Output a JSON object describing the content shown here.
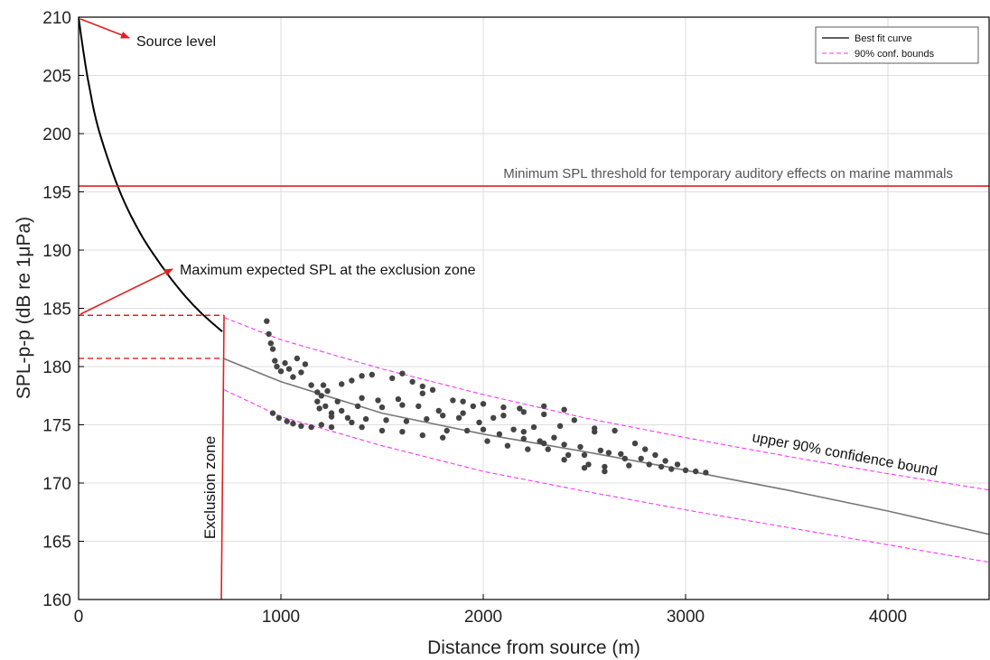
{
  "chart_data": {
    "type": "scatter",
    "xlabel": "Distance from source (m)",
    "ylabel": "SPL-p-p (dB re 1μPa)",
    "xlim": [
      0,
      4500
    ],
    "ylim": [
      160,
      210
    ],
    "xticks": [
      0,
      1000,
      2000,
      3000,
      4000
    ],
    "yticks": [
      160,
      165,
      170,
      175,
      180,
      185,
      190,
      195,
      200,
      205,
      210
    ],
    "grid": true,
    "legend": {
      "placement": "top-right",
      "entries": [
        {
          "label": "Best fit curve",
          "color": "#000000",
          "style": "solid"
        },
        {
          "label": "90% conf. bounds",
          "color": "#ff33ff",
          "style": "dashed"
        }
      ]
    },
    "threshold": {
      "y": 195.5,
      "label": "Minimum SPL threshold for temporary auditory effects on marine mammals",
      "color": "#e02020"
    },
    "exclusion_zone": {
      "x": 710,
      "label": "Exclusion zone",
      "color": "#e02020",
      "upper_level": 184.4,
      "lower_level": 180.7
    },
    "annotations": {
      "source_level": "Source level",
      "max_expected": "Maximum expected SPL at the exclusion zone",
      "upper_bound_label": "upper 90% confidence bound"
    },
    "best_fit": {
      "source_level": 210,
      "k": 0.0191,
      "points": [
        [
          0,
          210
        ],
        [
          20,
          207.5
        ],
        [
          50,
          204.3
        ],
        [
          100,
          200.3
        ],
        [
          200,
          195.2
        ],
        [
          300,
          191.6
        ],
        [
          400,
          188.9
        ],
        [
          500,
          186.6
        ],
        [
          600,
          184.7
        ],
        [
          710,
          183.0
        ],
        [
          715,
          180.7
        ],
        [
          1000,
          178.7
        ],
        [
          1500,
          176.0
        ],
        [
          2000,
          174.2
        ],
        [
          2500,
          172.7
        ],
        [
          3000,
          171.1
        ],
        [
          3200,
          170.4
        ],
        [
          3500,
          169.4
        ],
        [
          4000,
          167.6
        ],
        [
          4500,
          165.6
        ]
      ]
    },
    "upper_bound": [
      [
        720,
        184.2
      ],
      [
        1000,
        182.3
      ],
      [
        1500,
        179.8
      ],
      [
        2000,
        177.6
      ],
      [
        2500,
        175.6
      ],
      [
        3000,
        173.9
      ],
      [
        3500,
        172.3
      ],
      [
        4000,
        170.8
      ],
      [
        4500,
        169.4
      ]
    ],
    "lower_bound": [
      [
        720,
        178.0
      ],
      [
        1000,
        175.7
      ],
      [
        1500,
        173.2
      ],
      [
        2000,
        171.0
      ],
      [
        2500,
        169.3
      ],
      [
        3000,
        167.7
      ],
      [
        3500,
        166.2
      ],
      [
        4000,
        164.7
      ],
      [
        4500,
        163.2
      ]
    ],
    "series": [
      {
        "color": "#444444",
        "points": [
          [
            930,
            183.9
          ],
          [
            940,
            182.8
          ],
          [
            950,
            182.0
          ],
          [
            960,
            181.5
          ],
          [
            970,
            180.5
          ],
          [
            980,
            180.0
          ],
          [
            1000,
            179.6
          ],
          [
            1020,
            180.3
          ],
          [
            1040,
            179.8
          ],
          [
            1060,
            179.1
          ],
          [
            1080,
            180.7
          ],
          [
            1100,
            179.5
          ],
          [
            1120,
            180.2
          ],
          [
            1150,
            178.4
          ],
          [
            1180,
            177.8
          ],
          [
            1200,
            177.5
          ],
          [
            1220,
            176.6
          ],
          [
            1250,
            176.0
          ],
          [
            1280,
            177.0
          ],
          [
            1300,
            176.2
          ],
          [
            1330,
            175.6
          ],
          [
            1350,
            178.8
          ],
          [
            1380,
            176.6
          ],
          [
            1400,
            177.3
          ],
          [
            1420,
            175.5
          ],
          [
            1450,
            179.3
          ],
          [
            1480,
            177.1
          ],
          [
            1500,
            176.5
          ],
          [
            1520,
            175.4
          ],
          [
            1550,
            179.0
          ],
          [
            1580,
            177.2
          ],
          [
            1600,
            176.7
          ],
          [
            1620,
            175.3
          ],
          [
            1650,
            178.7
          ],
          [
            1680,
            176.6
          ],
          [
            1700,
            177.7
          ],
          [
            1720,
            175.5
          ],
          [
            1750,
            178.0
          ],
          [
            1780,
            176.2
          ],
          [
            1800,
            175.8
          ],
          [
            1820,
            174.5
          ],
          [
            1850,
            177.1
          ],
          [
            1880,
            175.6
          ],
          [
            1900,
            176.0
          ],
          [
            1920,
            174.5
          ],
          [
            1950,
            176.6
          ],
          [
            1980,
            175.2
          ],
          [
            2000,
            174.6
          ],
          [
            2020,
            173.6
          ],
          [
            2050,
            175.6
          ],
          [
            2080,
            174.2
          ],
          [
            2100,
            175.8
          ],
          [
            2120,
            173.2
          ],
          [
            2150,
            174.6
          ],
          [
            2180,
            176.4
          ],
          [
            2200,
            174.4
          ],
          [
            2220,
            172.9
          ],
          [
            2250,
            174.8
          ],
          [
            2280,
            173.6
          ],
          [
            2300,
            176.6
          ],
          [
            2320,
            172.9
          ],
          [
            2350,
            173.9
          ],
          [
            2380,
            174.9
          ],
          [
            2400,
            173.3
          ],
          [
            2420,
            172.4
          ],
          [
            2450,
            175.4
          ],
          [
            2480,
            173.1
          ],
          [
            2500,
            172.4
          ],
          [
            2520,
            171.6
          ],
          [
            2550,
            174.4
          ],
          [
            2580,
            172.8
          ],
          [
            2600,
            171.4
          ],
          [
            2620,
            172.6
          ],
          [
            2650,
            174.5
          ],
          [
            2680,
            172.5
          ],
          [
            2700,
            172.1
          ],
          [
            2720,
            171.5
          ],
          [
            2750,
            173.4
          ],
          [
            2780,
            172.1
          ],
          [
            2800,
            172.9
          ],
          [
            2820,
            171.6
          ],
          [
            2850,
            172.4
          ],
          [
            2880,
            171.4
          ],
          [
            2900,
            171.9
          ],
          [
            2930,
            171.2
          ],
          [
            2960,
            171.6
          ],
          [
            3000,
            171.1
          ],
          [
            3050,
            171.0
          ],
          [
            3100,
            170.9
          ],
          [
            960,
            176.0
          ],
          [
            990,
            175.6
          ],
          [
            1030,
            175.3
          ],
          [
            1060,
            175.1
          ],
          [
            1100,
            174.9
          ],
          [
            1150,
            174.8
          ],
          [
            1200,
            175.0
          ],
          [
            1250,
            174.8
          ],
          [
            1300,
            178.5
          ],
          [
            1400,
            179.2
          ],
          [
            1600,
            179.4
          ],
          [
            1700,
            178.3
          ],
          [
            1900,
            177.0
          ],
          [
            2000,
            176.8
          ],
          [
            2100,
            176.5
          ],
          [
            2200,
            176.1
          ],
          [
            2300,
            175.9
          ],
          [
            2400,
            176.3
          ],
          [
            2550,
            174.7
          ],
          [
            2600,
            171.0
          ],
          [
            2500,
            171.3
          ],
          [
            2400,
            172.0
          ],
          [
            2300,
            173.4
          ],
          [
            2200,
            173.8
          ],
          [
            1800,
            173.9
          ],
          [
            1700,
            174.1
          ],
          [
            1600,
            174.4
          ],
          [
            1500,
            174.5
          ],
          [
            1400,
            174.8
          ],
          [
            1350,
            175.2
          ],
          [
            1250,
            175.7
          ],
          [
            1190,
            176.4
          ],
          [
            1180,
            177.0
          ],
          [
            1210,
            178.4
          ],
          [
            1230,
            177.9
          ]
        ]
      }
    ]
  }
}
